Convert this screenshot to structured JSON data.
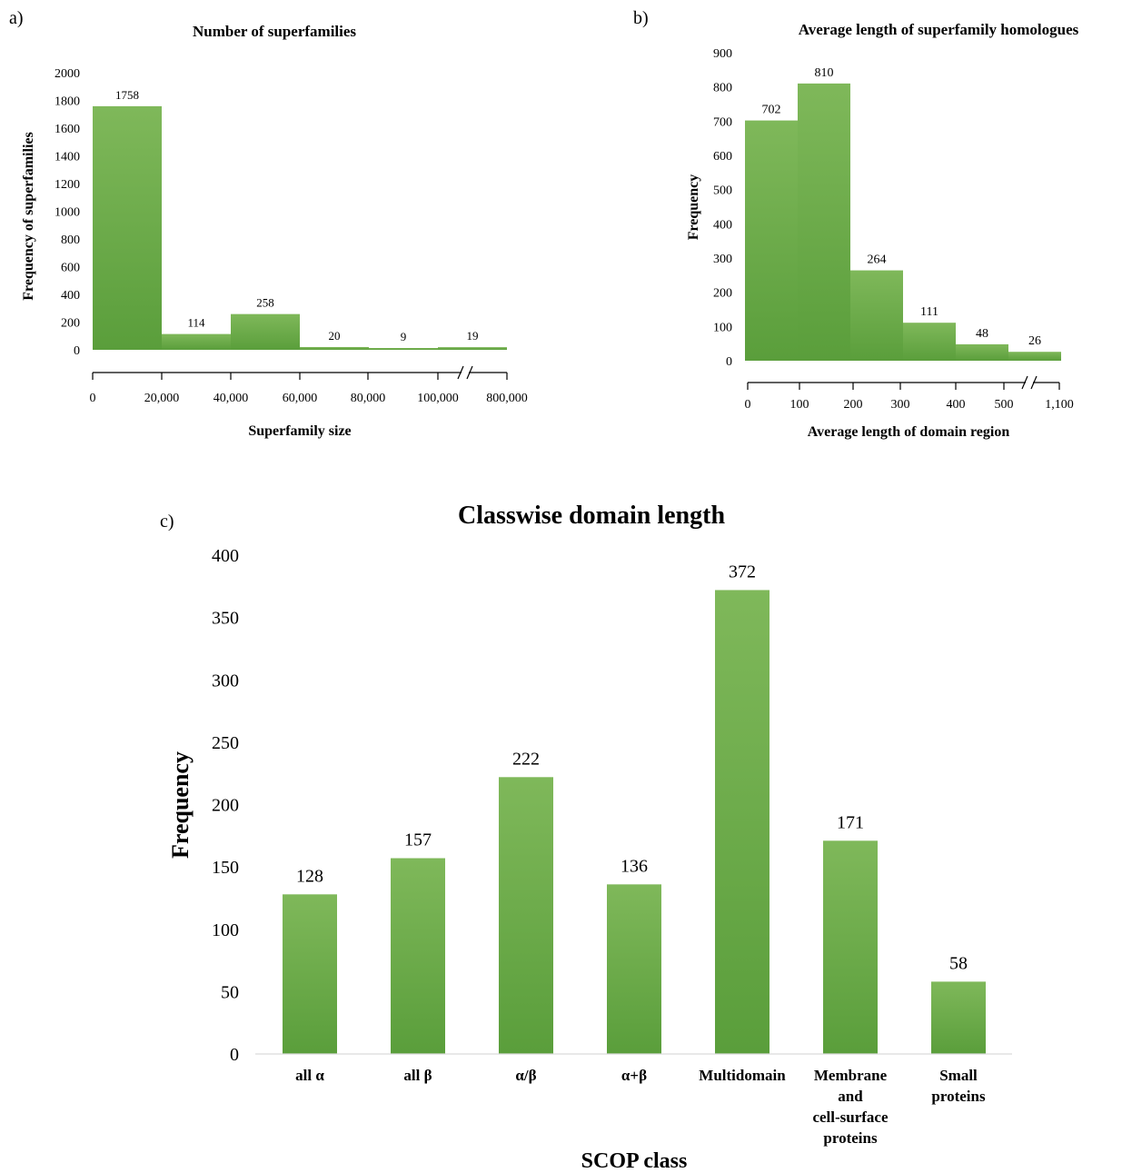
{
  "bar_color_top": "#7fb85a",
  "bar_color_bottom": "#5a9e3b",
  "chart_data": [
    {
      "type": "bar",
      "panel_label": "a)",
      "title": "Number of superfamilies",
      "xlabel": "Superfamily size",
      "ylabel": "Frequency of superfamilies",
      "ylim": [
        0,
        2000
      ],
      "yticks": [
        "0",
        "200",
        "400",
        "600",
        "800",
        "1000",
        "1200",
        "1400",
        "1600",
        "1800",
        "2000"
      ],
      "xticks": [
        "0",
        "20,000",
        "40,000",
        "60,000",
        "80,000",
        "100,000",
        "800,000"
      ],
      "axis_break": true,
      "values": [
        1758,
        114,
        258,
        20,
        9,
        19
      ],
      "data_labels": [
        "1758",
        "114",
        "258",
        "20",
        "9",
        "19"
      ]
    },
    {
      "type": "bar",
      "panel_label": "b)",
      "title": "Average length of superfamily homologues",
      "xlabel": "Average length of domain region",
      "ylabel": "Frequency",
      "ylim": [
        0,
        900
      ],
      "yticks": [
        "0",
        "100",
        "200",
        "300",
        "400",
        "500",
        "600",
        "700",
        "800",
        "900"
      ],
      "xticks": [
        "0",
        "100",
        "200",
        "300",
        "400",
        "500",
        "1,100"
      ],
      "axis_break": true,
      "values": [
        702,
        810,
        264,
        111,
        48,
        26
      ],
      "data_labels": [
        "702",
        "810",
        "264",
        "111",
        "48",
        "26"
      ]
    },
    {
      "type": "bar",
      "panel_label": "c)",
      "title": "Classwise domain length",
      "xlabel": "SCOP class",
      "ylabel": "Frequency",
      "ylim": [
        0,
        400
      ],
      "yticks": [
        "0",
        "50",
        "100",
        "150",
        "200",
        "250",
        "300",
        "350",
        "400"
      ],
      "categories": [
        [
          "all α"
        ],
        [
          "all β"
        ],
        [
          "α/β"
        ],
        [
          "α+β"
        ],
        [
          "Multidomain"
        ],
        [
          "Membrane",
          "and",
          "cell-surface",
          "proteins"
        ],
        [
          "Small",
          "proteins"
        ]
      ],
      "values": [
        128,
        157,
        222,
        136,
        372,
        171,
        58
      ],
      "data_labels": [
        "128",
        "157",
        "222",
        "136",
        "372",
        "171",
        "58"
      ]
    }
  ]
}
